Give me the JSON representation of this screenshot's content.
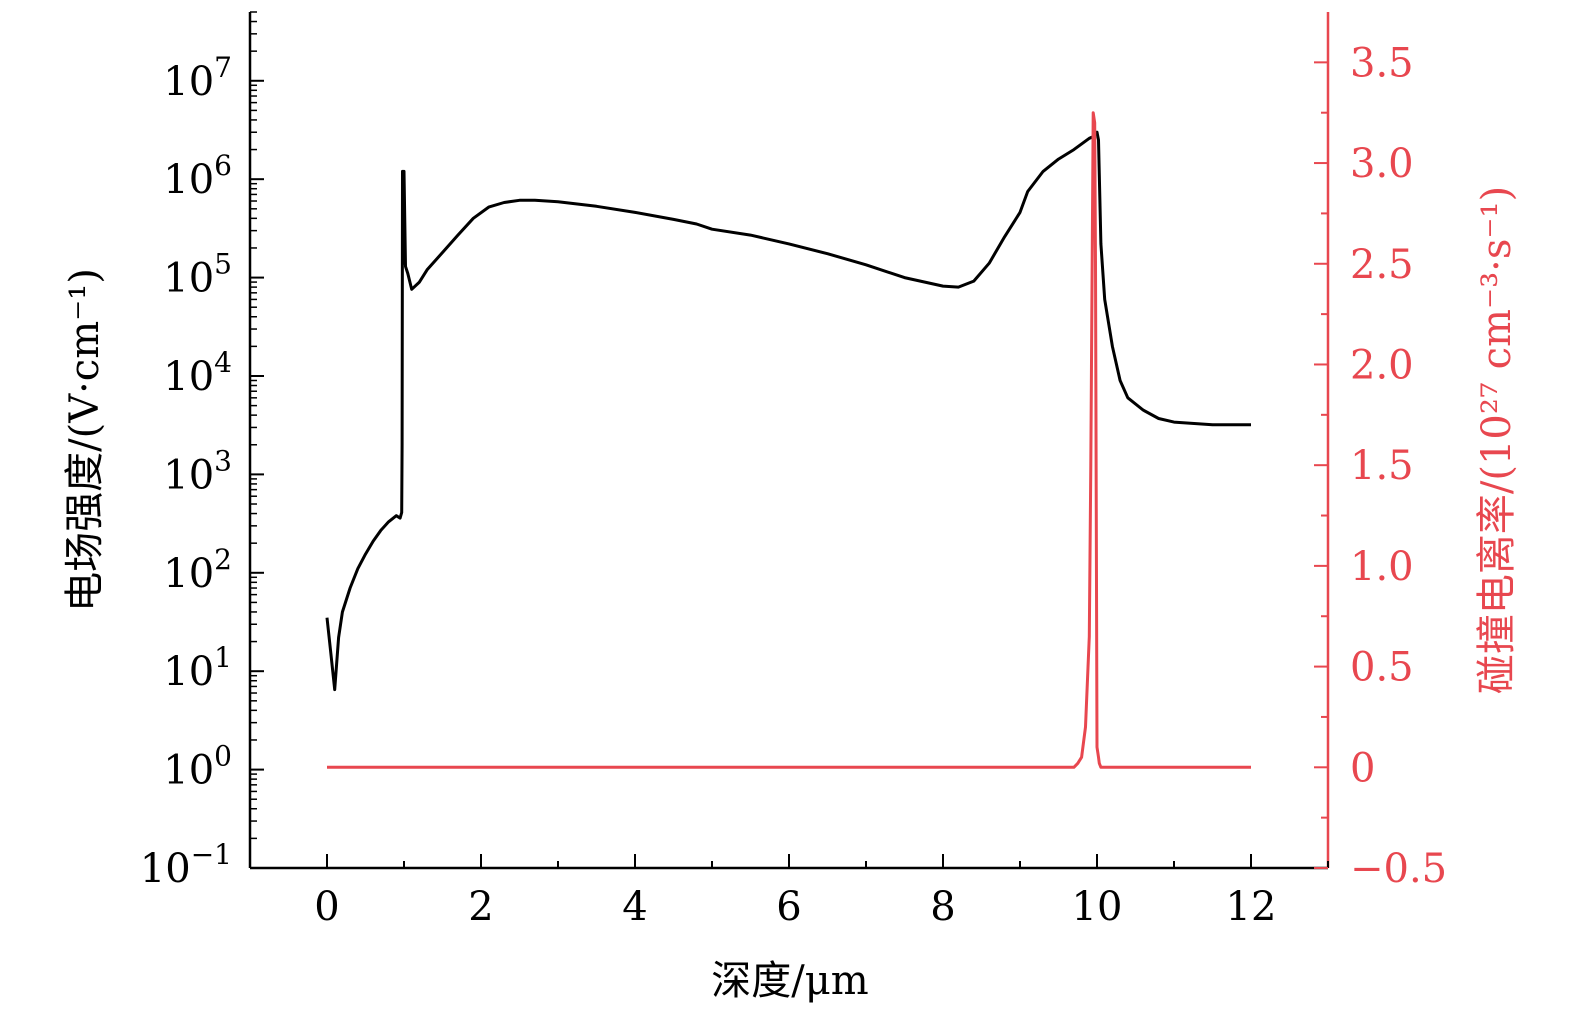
{
  "chart_data": {
    "type": "line",
    "xlabel": "深度/μm",
    "ylabel_left": "电场强度/(V·cm⁻¹)",
    "ylabel_right": "碰撞电离率/(10²⁷ cm⁻³·s⁻¹)",
    "xlim": [
      -1,
      13
    ],
    "ylim_left": [
      0.1,
      50000000
    ],
    "yscale_left": "log",
    "ylim_right": [
      -0.5,
      3.75
    ],
    "x_ticks": [
      "0",
      "2",
      "4",
      "6",
      "8",
      "10",
      "12"
    ],
    "x_tick_values": [
      0,
      2,
      4,
      6,
      8,
      10,
      12
    ],
    "y_left_ticks": [
      {
        "value": 0.1,
        "base": "10",
        "exp": "−1"
      },
      {
        "value": 1,
        "base": "10",
        "exp": "0"
      },
      {
        "value": 10,
        "base": "10",
        "exp": "1"
      },
      {
        "value": 100,
        "base": "10",
        "exp": "2"
      },
      {
        "value": 1000,
        "base": "10",
        "exp": "3"
      },
      {
        "value": 10000,
        "base": "10",
        "exp": "4"
      },
      {
        "value": 100000,
        "base": "10",
        "exp": "5"
      },
      {
        "value": 1000000,
        "base": "10",
        "exp": "6"
      },
      {
        "value": 10000000,
        "base": "10",
        "exp": "7"
      }
    ],
    "y_right_ticks": [
      "−0.5",
      "0",
      "0.5",
      "1.0",
      "1.5",
      "2.0",
      "2.5",
      "3.0",
      "3.5"
    ],
    "y_right_tick_values": [
      -0.5,
      0,
      0.5,
      1.0,
      1.5,
      2.0,
      2.5,
      3.0,
      3.5
    ],
    "grid": false,
    "series": [
      {
        "axis": "left",
        "color": "#000000",
        "x": [
          0.0,
          0.05,
          0.1,
          0.15,
          0.2,
          0.3,
          0.4,
          0.5,
          0.6,
          0.7,
          0.8,
          0.9,
          0.95,
          0.97,
          0.975,
          0.98,
          0.985,
          0.99,
          0.995,
          1.0,
          1.02,
          1.05,
          1.1,
          1.2,
          1.3,
          1.5,
          1.7,
          1.9,
          2.1,
          2.3,
          2.5,
          2.7,
          3.0,
          3.5,
          4.0,
          4.5,
          4.8,
          5.0,
          5.5,
          6.0,
          6.5,
          7.0,
          7.5,
          8.0,
          8.2,
          8.4,
          8.6,
          8.8,
          9.0,
          9.1,
          9.3,
          9.5,
          9.7,
          9.9,
          9.95,
          10.0,
          10.02,
          10.05,
          10.1,
          10.2,
          10.3,
          10.4,
          10.6,
          10.8,
          11.0,
          11.5,
          12.0
        ],
        "y": [
          35,
          15,
          6.5,
          22,
          40,
          70,
          110,
          155,
          210,
          270,
          330,
          380,
          360,
          410,
          2000,
          1200000,
          140000,
          1200000,
          140000,
          1200000,
          130000,
          110000,
          76000,
          90000,
          120000,
          180000,
          270000,
          400000,
          520000,
          580000,
          610000,
          610000,
          590000,
          530000,
          460000,
          390000,
          350000,
          310000,
          270000,
          220000,
          175000,
          135000,
          100000,
          82000,
          80000,
          92000,
          140000,
          260000,
          460000,
          750000,
          1200000,
          1600000,
          2000000,
          2600000,
          2700000,
          3000000,
          2500000,
          220000,
          60000,
          20000,
          9000,
          6000,
          4500,
          3700,
          3400,
          3200,
          3200
        ]
      },
      {
        "axis": "right",
        "color": "#e8474f",
        "x": [
          0.0,
          9.5,
          9.7,
          9.75,
          9.8,
          9.85,
          9.9,
          9.92,
          9.95,
          9.97,
          9.98,
          10.0,
          10.02,
          10.03,
          10.05,
          10.1,
          12.0
        ],
        "y": [
          0,
          0,
          0,
          0.02,
          0.05,
          0.2,
          0.65,
          1.5,
          3.25,
          3.2,
          2.5,
          0.1,
          0.05,
          0.02,
          0,
          0,
          0
        ]
      }
    ]
  }
}
